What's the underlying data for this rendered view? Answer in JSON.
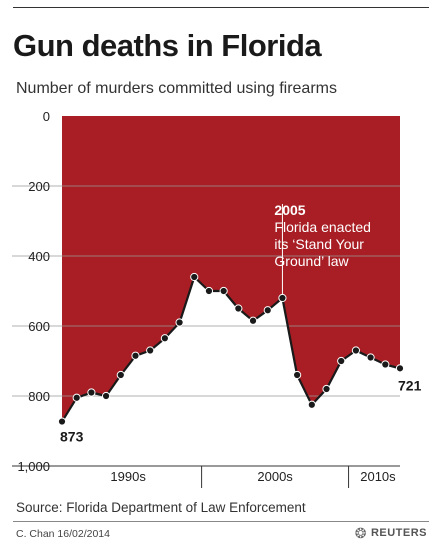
{
  "title": "Gun deaths in Florida",
  "subtitle": "Number of murders committed using firearms",
  "source": "Source: Florida Department of Law Enforcement",
  "credit": "C. Chan  16/02/2014",
  "logo_text": "REUTERS",
  "colors": {
    "fill": "#a81e24",
    "line": "#1a1a1a"
  },
  "chart_data": {
    "type": "area",
    "inverted_y": true,
    "ylim": [
      0,
      1000
    ],
    "yticks": [
      0,
      200,
      400,
      600,
      800,
      1000
    ],
    "ytick_labels": [
      "0",
      "200",
      "400",
      "600",
      "800",
      "1,000"
    ],
    "xlim": [
      1990,
      2013
    ],
    "x_groups": [
      {
        "label": "1990s",
        "from": 1990,
        "to": 1999
      },
      {
        "label": "2000s",
        "from": 2000,
        "to": 2009
      },
      {
        "label": "2010s",
        "from": 2010,
        "to": 2013
      }
    ],
    "x": [
      1990,
      1991,
      1992,
      1993,
      1994,
      1995,
      1996,
      1997,
      1998,
      1999,
      2000,
      2001,
      2002,
      2003,
      2004,
      2005,
      2006,
      2007,
      2008,
      2009,
      2010,
      2011,
      2012,
      2013
    ],
    "values": [
      873,
      805,
      790,
      800,
      740,
      685,
      670,
      635,
      590,
      460,
      500,
      500,
      550,
      585,
      555,
      520,
      740,
      825,
      780,
      700,
      670,
      690,
      710,
      721
    ],
    "data_labels": [
      {
        "index": 0,
        "text": "873"
      },
      {
        "index": 23,
        "text": "721"
      }
    ],
    "annotation": {
      "index": 15,
      "year_text": "2005",
      "lines": [
        "Florida enacted",
        "its ‘Stand Your",
        "Ground’ law"
      ]
    }
  }
}
